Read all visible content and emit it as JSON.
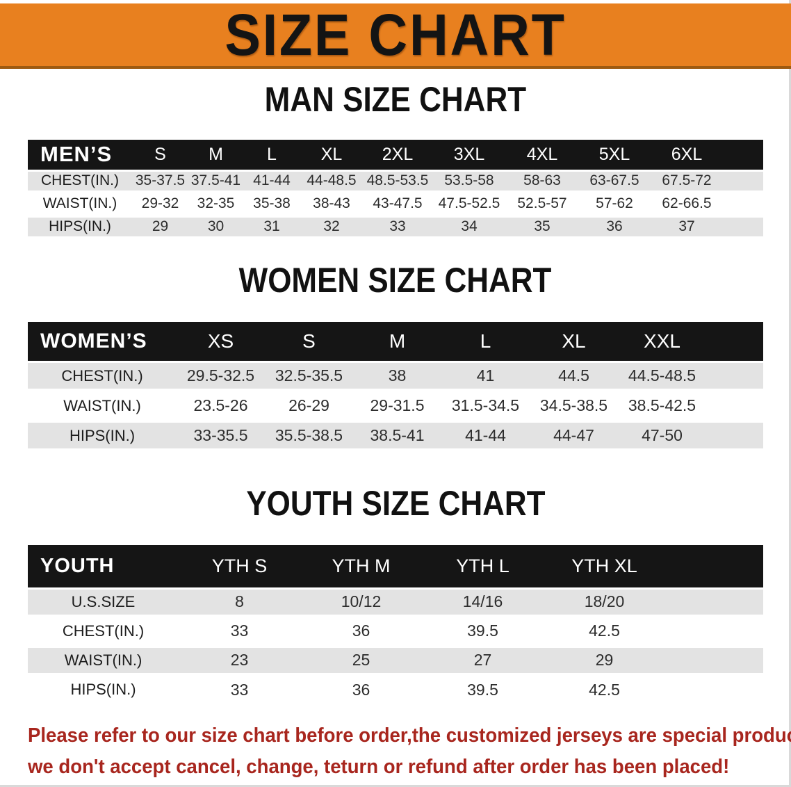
{
  "banner": {
    "title": "SIZE CHART",
    "bg_color": "#E8801F",
    "border_color": "#9E5A10",
    "text_color": "#141414"
  },
  "sections": [
    {
      "heading": "MAN SIZE CHART",
      "table": {
        "corner_label": "MEN’S",
        "columns": [
          "S",
          "M",
          "L",
          "XL",
          "2XL",
          "3XL",
          "4XL",
          "5XL",
          "6XL"
        ],
        "rows": [
          {
            "label": "CHEST(IN.)",
            "values": [
              "35-37.5",
              "37.5-41",
              "41-44",
              "44-48.5",
              "48.5-53.5",
              "53.5-58",
              "58-63",
              "63-67.5",
              "67.5-72"
            ]
          },
          {
            "label": "WAIST(IN.)",
            "values": [
              "29-32",
              "32-35",
              "35-38",
              "38-43",
              "43-47.5",
              "47.5-52.5",
              "52.5-57",
              "57-62",
              "62-66.5"
            ]
          },
          {
            "label": "HIPS(IN.)",
            "values": [
              "29",
              "30",
              "31",
              "32",
              "33",
              "34",
              "35",
              "36",
              "37"
            ]
          }
        ]
      }
    },
    {
      "heading": "WOMEN SIZE CHART",
      "table": {
        "corner_label": "WOMEN’S",
        "columns": [
          "XS",
          "S",
          "M",
          "L",
          "XL",
          "XXL"
        ],
        "rows": [
          {
            "label": "CHEST(IN.)",
            "values": [
              "29.5-32.5",
              "32.5-35.5",
              "38",
              "41",
              "44.5",
              "44.5-48.5"
            ]
          },
          {
            "label": "WAIST(IN.)",
            "values": [
              "23.5-26",
              "26-29",
              "29-31.5",
              "31.5-34.5",
              "34.5-38.5",
              "38.5-42.5"
            ]
          },
          {
            "label": "HIPS(IN.)",
            "values": [
              "33-35.5",
              "35.5-38.5",
              "38.5-41",
              "41-44",
              "44-47",
              "47-50"
            ]
          }
        ]
      }
    },
    {
      "heading": "YOUTH SIZE CHART",
      "table": {
        "corner_label": "YOUTH",
        "columns": [
          "YTH S",
          "YTH M",
          "YTH L",
          "YTH XL"
        ],
        "rows": [
          {
            "label": "U.S.SIZE",
            "values": [
              "8",
              "10/12",
              "14/16",
              "18/20"
            ]
          },
          {
            "label": "CHEST(IN.)",
            "values": [
              "33",
              "36",
              "39.5",
              "42.5"
            ]
          },
          {
            "label": "WAIST(IN.)",
            "values": [
              "23",
              "25",
              "27",
              "29"
            ]
          },
          {
            "label": "HIPS(IN.)",
            "values": [
              "33",
              "36",
              "39.5",
              "42.5"
            ]
          }
        ]
      }
    }
  ],
  "disclaimer": {
    "line1": "Please refer to our size chart before order,the customized jerseys are special products,",
    "line2": "we don't accept cancel, change, teturn or refund after order has been placed!",
    "color": "#A8261E"
  },
  "table_colors": {
    "header_bg": "#151515",
    "header_text": "#ffffff",
    "shaded_row_bg": "#E3E3E3",
    "plain_row_bg": "#ffffff"
  }
}
